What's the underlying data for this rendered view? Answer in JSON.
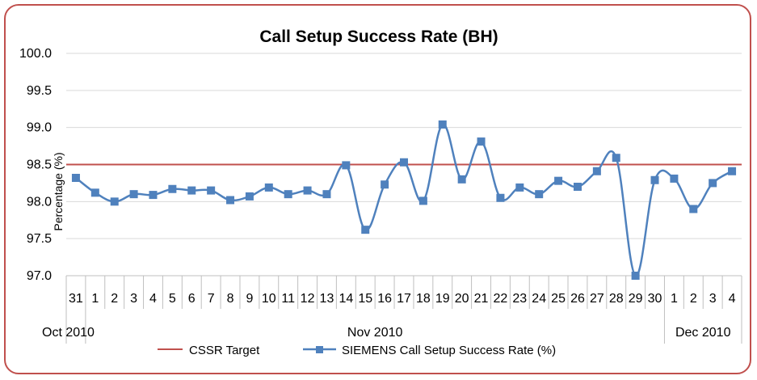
{
  "chart_data": {
    "type": "line",
    "title": "Call Setup Success Rate (BH)",
    "ylabel": "Percentage (%)",
    "xlabel": "",
    "ylim": [
      97.0,
      100.0
    ],
    "yticks": [
      "100.0",
      "99.5",
      "99.0",
      "98.5",
      "98.0",
      "97.5",
      "97.0"
    ],
    "grid": true,
    "categories": [
      "31",
      "1",
      "2",
      "3",
      "4",
      "5",
      "6",
      "7",
      "8",
      "9",
      "10",
      "11",
      "12",
      "13",
      "14",
      "15",
      "16",
      "17",
      "18",
      "19",
      "20",
      "21",
      "22",
      "23",
      "24",
      "25",
      "26",
      "27",
      "28",
      "29",
      "30",
      "1",
      "2",
      "3",
      "4"
    ],
    "month_groups": [
      {
        "label": "Oct 2010",
        "start": 0,
        "end": 0
      },
      {
        "label": "Nov 2010",
        "start": 1,
        "end": 30
      },
      {
        "label": "Dec 2010",
        "start": 31,
        "end": 34
      }
    ],
    "series": [
      {
        "name": "CSSR Target",
        "color": "#c0504d",
        "values": [
          98.5,
          98.5,
          98.5,
          98.5,
          98.5,
          98.5,
          98.5,
          98.5,
          98.5,
          98.5,
          98.5,
          98.5,
          98.5,
          98.5,
          98.5,
          98.5,
          98.5,
          98.5,
          98.5,
          98.5,
          98.5,
          98.5,
          98.5,
          98.5,
          98.5,
          98.5,
          98.5,
          98.5,
          98.5,
          98.5,
          98.5,
          98.5,
          98.5,
          98.5,
          98.5
        ]
      },
      {
        "name": "SIEMENS Call Setup Success Rate (%)",
        "color": "#4f81bd",
        "values": [
          98.32,
          98.12,
          98.0,
          98.1,
          98.09,
          98.17,
          98.15,
          98.15,
          98.02,
          98.07,
          98.19,
          98.1,
          98.15,
          98.1,
          98.49,
          97.62,
          98.23,
          98.53,
          98.01,
          99.04,
          98.3,
          98.81,
          98.05,
          98.19,
          98.1,
          98.28,
          98.2,
          98.41,
          98.59,
          97.0,
          98.29,
          98.31,
          97.9,
          98.25,
          98.41
        ]
      }
    ],
    "legend_position": "bottom"
  }
}
